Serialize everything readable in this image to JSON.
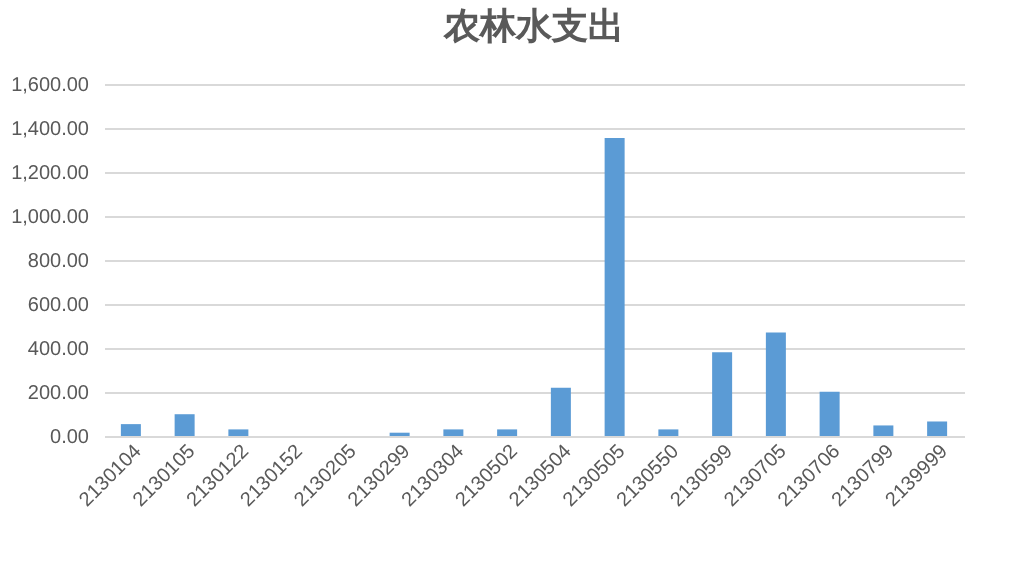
{
  "chart_data": {
    "type": "bar",
    "title": "农林水支出",
    "categories": [
      "2130104",
      "2130105",
      "2130122",
      "2130152",
      "2130205",
      "2130299",
      "2130304",
      "2130502",
      "2130504",
      "2130505",
      "2130550",
      "2130599",
      "2130705",
      "2130706",
      "2130799",
      "2139999"
    ],
    "values": [
      54,
      99,
      30,
      0,
      0,
      15,
      30,
      30,
      219,
      1354,
      30,
      381,
      471,
      201,
      48,
      66
    ],
    "color": "#5b9bd5",
    "ylim": [
      0,
      1600
    ],
    "yticks": [
      {
        "value": 0,
        "label": "0.00"
      },
      {
        "value": 200,
        "label": "200.00"
      },
      {
        "value": 400,
        "label": "400.00"
      },
      {
        "value": 600,
        "label": "600.00"
      },
      {
        "value": 800,
        "label": "800.00"
      },
      {
        "value": 1000,
        "label": "1,000.00"
      },
      {
        "value": 1200,
        "label": "1,200.00"
      },
      {
        "value": 1400,
        "label": "1,400.00"
      },
      {
        "value": 1600,
        "label": "1,600.00"
      }
    ],
    "grid": "y"
  }
}
